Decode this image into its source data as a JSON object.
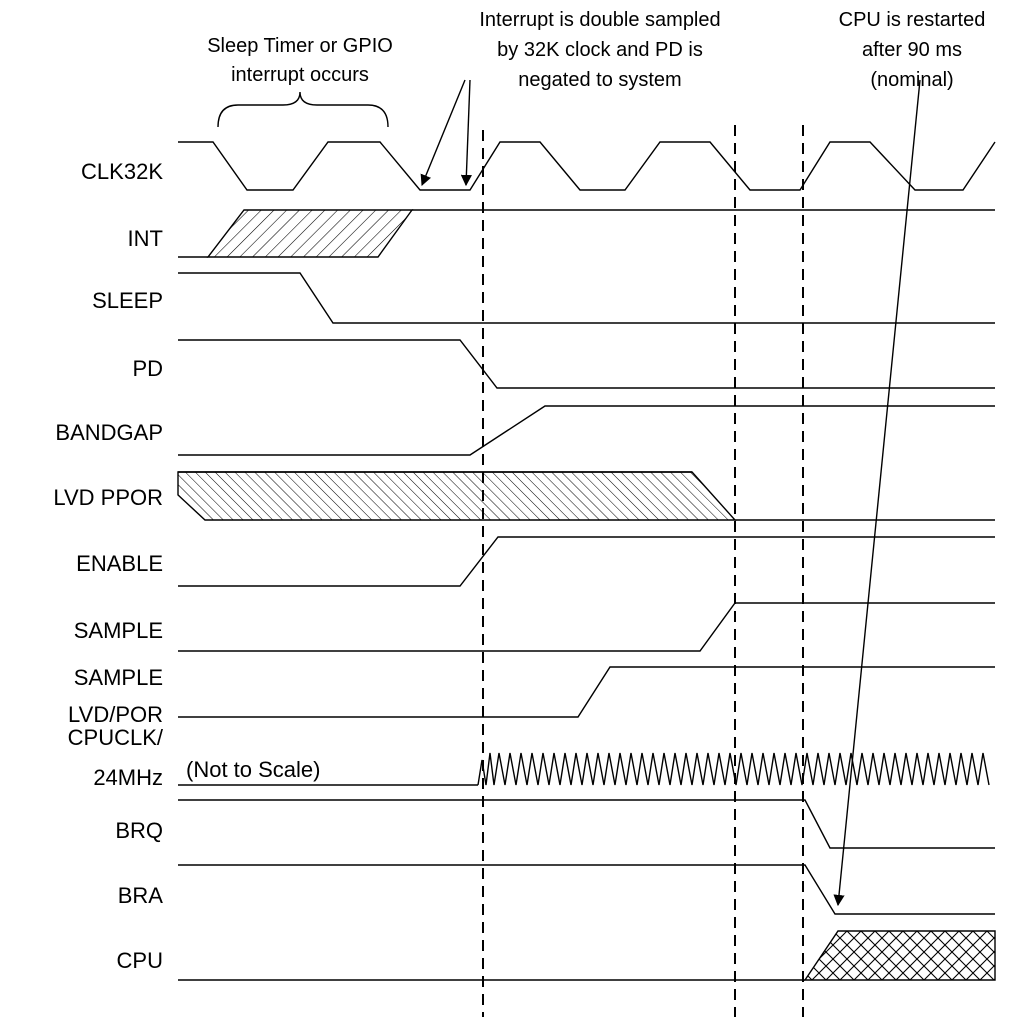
{
  "signals": [
    {
      "id": "clk32k",
      "label": "CLK32K"
    },
    {
      "id": "int",
      "label": "INT"
    },
    {
      "id": "sleep",
      "label": "SLEEP"
    },
    {
      "id": "pd",
      "label": "PD"
    },
    {
      "id": "bandgap",
      "label": "BANDGAP"
    },
    {
      "id": "lvd_ppor",
      "label": "LVD PPOR"
    },
    {
      "id": "enable",
      "label": "ENABLE"
    },
    {
      "id": "sample",
      "label": "SAMPLE"
    },
    {
      "id": "sample_lvd_por",
      "label_line1": "SAMPLE",
      "label_line2": "LVD/POR"
    },
    {
      "id": "cpuclk",
      "label_line1": "CPUCLK/",
      "label_line2": "24MHz"
    },
    {
      "id": "brq",
      "label": "BRQ"
    },
    {
      "id": "bra",
      "label": "BRA"
    },
    {
      "id": "cpu",
      "label": "CPU"
    }
  ],
  "annotations": {
    "sleep_timer": [
      "Sleep Timer or GPIO",
      "interrupt occurs"
    ],
    "double_sampled": [
      "Interrupt is double sampled",
      "by 32K clock and PD is",
      "negated to system"
    ],
    "cpu_restart": [
      "CPU is restarted",
      "after 90 ms",
      "(nominal)"
    ],
    "not_to_scale": "(Not to Scale)"
  }
}
